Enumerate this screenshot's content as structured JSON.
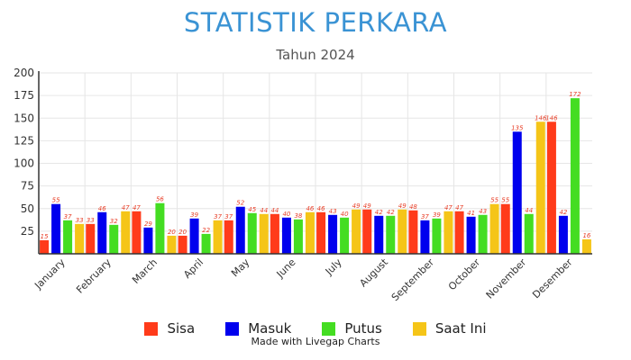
{
  "chart_data": {
    "type": "bar",
    "title": "STATISTIK PERKARA",
    "subtitle": "Tahun 2024",
    "categories": [
      "January",
      "February",
      "March",
      "April",
      "May",
      "June",
      "July",
      "August",
      "September",
      "October",
      "November",
      "Desember"
    ],
    "series": [
      {
        "name": "Sisa",
        "color": "#ff3b1a",
        "values": [
          15,
          33,
          47,
          20,
          37,
          44,
          46,
          49,
          48,
          47,
          55,
          146
        ]
      },
      {
        "name": "Masuk",
        "color": "#0000ee",
        "values": [
          55,
          46,
          29,
          39,
          52,
          40,
          43,
          42,
          37,
          41,
          135,
          42
        ]
      },
      {
        "name": "Putus",
        "color": "#44dd22",
        "values": [
          37,
          32,
          56,
          22,
          45,
          38,
          40,
          42,
          39,
          43,
          44,
          172
        ]
      },
      {
        "name": "Saat Ini",
        "color": "#f5c518",
        "values": [
          33,
          47,
          20,
          37,
          44,
          46,
          49,
          49,
          47,
          55,
          146,
          16
        ]
      }
    ],
    "yticks": [
      25,
      50,
      75,
      100,
      125,
      150,
      175,
      200
    ],
    "ylim": [
      0,
      200
    ],
    "grid": true,
    "legend_position": "bottom"
  },
  "footer": {
    "credit": "Made with Livegap Charts"
  }
}
